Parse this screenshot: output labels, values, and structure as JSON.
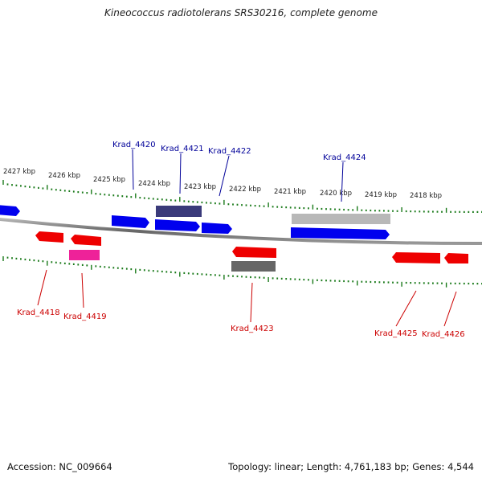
{
  "title": "Kineococcus radiotolerans SRS30216, complete genome",
  "footer": {
    "accession": "Accession: NC_009664",
    "topology": "Topology: linear; Length: 4,761,183 bp; Genes: 4,544"
  },
  "colors": {
    "forward_strand": "#0000ee",
    "reverse_strand": "#ee0000",
    "label_forward": "#000099",
    "label_reverse": "#cc0000",
    "tick": "#1a7a1a",
    "backbone": "#777777"
  },
  "scale_labels": [
    "2427 kbp",
    "2426 kbp",
    "2425 kbp",
    "2424 kbp",
    "2423 kbp",
    "2422 kbp",
    "2421 kbp",
    "2420 kbp",
    "2419 kbp",
    "2418 kbp"
  ],
  "genes": [
    {
      "label": "Krad_4418",
      "strand": "reverse"
    },
    {
      "label": "Krad_4419",
      "strand": "reverse"
    },
    {
      "label": "Krad_4420",
      "strand": "forward"
    },
    {
      "label": "Krad_4421",
      "strand": "forward"
    },
    {
      "label": "Krad_4422",
      "strand": "forward"
    },
    {
      "label": "Krad_4423",
      "strand": "reverse"
    },
    {
      "label": "Krad_4424",
      "strand": "forward"
    },
    {
      "label": "Krad_4425",
      "strand": "reverse"
    },
    {
      "label": "Krad_4426",
      "strand": "reverse"
    }
  ]
}
